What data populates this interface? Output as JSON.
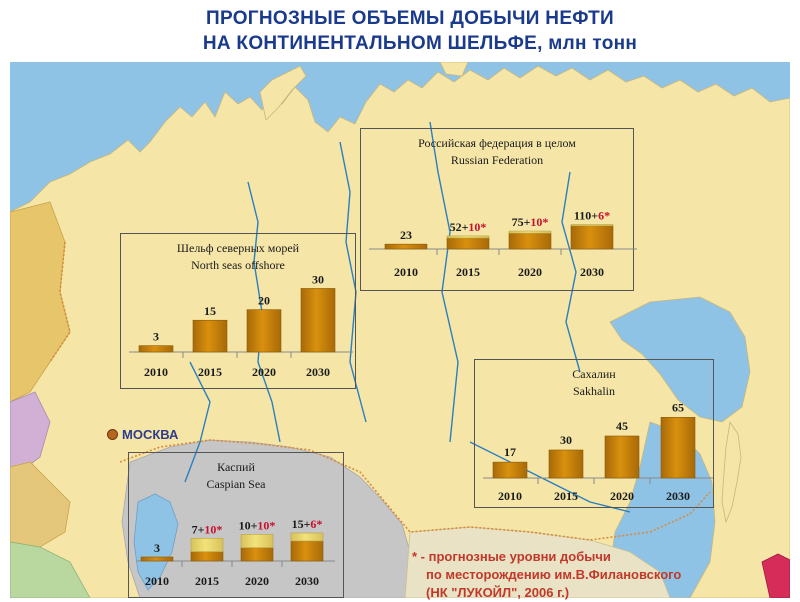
{
  "title": {
    "line1": "ПРОГНОЗНЫЕ ОБЪЕМЫ ДОБЫЧИ НЕФТИ",
    "line2": "НА КОНТИНЕНТАЛЬНОМ ШЕЛЬФЕ, млн тонн"
  },
  "map": {
    "city_label": "МОСКВА",
    "colors": {
      "land": "#f5e6a8",
      "sea": "#8fc3e6",
      "caspian_region": "#c6c6c6",
      "river": "#2a7fc1",
      "border": "#d98a3a"
    }
  },
  "colors": {
    "bar": "#d9900e",
    "bar_extra": "#f2e27a",
    "value_text": "#1a1a1a",
    "star_text": "#c8102e"
  },
  "chart_data": [
    {
      "id": "russia",
      "type": "bar",
      "title_ru": "Российская федерация в целом",
      "title_en": "Russian Federation",
      "categories": [
        "2010",
        "2015",
        "2020",
        "2030"
      ],
      "series": [
        {
          "values": [
            23,
            52,
            75,
            110
          ]
        },
        {
          "values": [
            0,
            10,
            10,
            6
          ]
        }
      ],
      "labels": [
        {
          "base": "23",
          "plus": "",
          "star": ""
        },
        {
          "base": "52+",
          "plus": "10",
          "star": "*"
        },
        {
          "base": "75+",
          "plus": "10",
          "star": "*"
        },
        {
          "base": "110+",
          "plus": "6",
          "star": "*"
        }
      ],
      "ylim": [
        0,
        450
      ]
    },
    {
      "id": "north",
      "type": "bar",
      "title_ru": "Шельф северных морей",
      "title_en": "North seas offshore",
      "categories": [
        "2010",
        "2015",
        "2020",
        "2030"
      ],
      "series": [
        {
          "values": [
            3,
            15,
            20,
            30
          ]
        }
      ],
      "labels": [
        {
          "base": "3",
          "plus": "",
          "star": ""
        },
        {
          "base": "15",
          "plus": "",
          "star": ""
        },
        {
          "base": "20",
          "plus": "",
          "star": ""
        },
        {
          "base": "30",
          "plus": "",
          "star": ""
        }
      ],
      "ylim": [
        0,
        34
      ]
    },
    {
      "id": "sakhalin",
      "type": "bar",
      "title_ru": "Сахалин",
      "title_en": "Sakhalin",
      "categories": [
        "2010",
        "2015",
        "2020",
        "2030"
      ],
      "series": [
        {
          "values": [
            17,
            30,
            45,
            65
          ]
        }
      ],
      "labels": [
        {
          "base": "17",
          "plus": "",
          "star": ""
        },
        {
          "base": "30",
          "plus": "",
          "star": ""
        },
        {
          "base": "45",
          "plus": "",
          "star": ""
        },
        {
          "base": "65",
          "plus": "",
          "star": ""
        }
      ],
      "ylim": [
        0,
        75
      ]
    },
    {
      "id": "caspian",
      "type": "bar",
      "title_ru": "Каспий",
      "title_en": "Caspian Sea",
      "categories": [
        "2010",
        "2015",
        "2020",
        "2030"
      ],
      "series": [
        {
          "values": [
            3,
            7,
            10,
            15
          ]
        },
        {
          "values": [
            0,
            10,
            10,
            6
          ]
        }
      ],
      "labels": [
        {
          "base": "3",
          "plus": "",
          "star": ""
        },
        {
          "base": "7+",
          "plus": "10",
          "star": "*"
        },
        {
          "base": "10+",
          "plus": "10",
          "star": "*"
        },
        {
          "base": "15+",
          "plus": "6",
          "star": "*"
        }
      ],
      "ylim": [
        0,
        60
      ]
    }
  ],
  "footnote": {
    "line1": "* - прогнозные уровни добычи",
    "line2": "по месторождению им.В.Филановского",
    "line3": "(НК \"ЛУКОЙЛ\", 2006 г.)"
  }
}
